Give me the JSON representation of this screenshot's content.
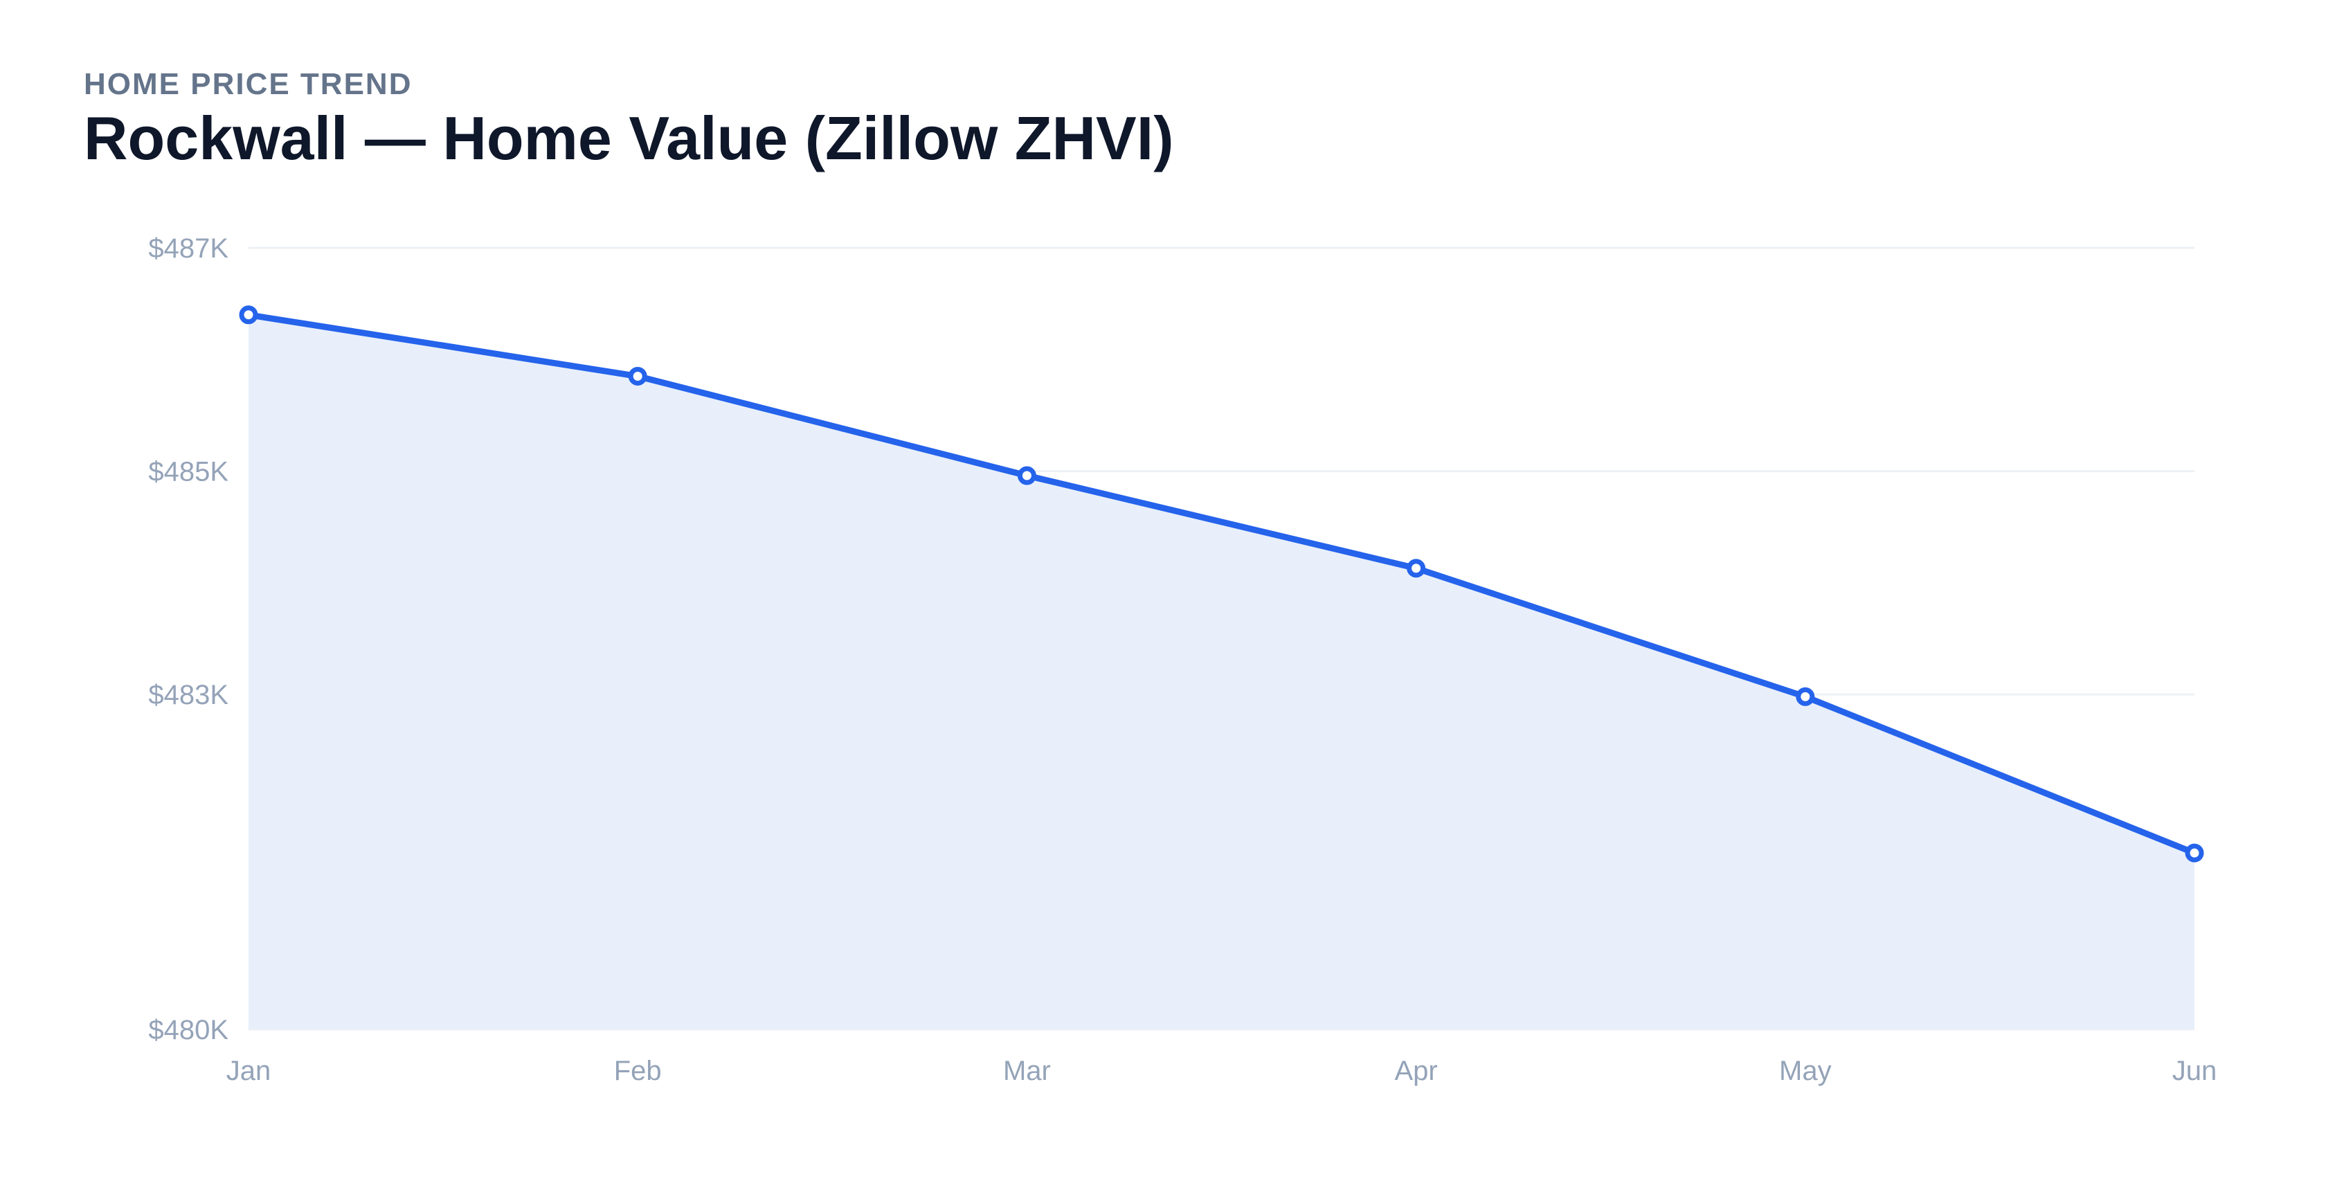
{
  "header": {
    "kicker": "HOME PRICE TREND",
    "title": "Rockwall — Home Value (Zillow ZHVI)"
  },
  "chart_data": {
    "type": "area",
    "categories": [
      "Jan",
      "Feb",
      "Mar",
      "Apr",
      "May",
      "Jun"
    ],
    "values": [
      486400,
      485850,
      484960,
      484130,
      482980,
      481580
    ],
    "ylim": [
      480000,
      487000
    ],
    "yticks": [
      480000,
      483000,
      485000,
      487000
    ],
    "ytick_labels": [
      "$480K",
      "$483K",
      "$485K",
      "$487K"
    ],
    "grid": true,
    "legend": "none",
    "colors": {
      "line": "#2563eb",
      "fill": "#e8effb",
      "grid": "#eef1f5",
      "marker_fill": "#ffffff"
    }
  }
}
